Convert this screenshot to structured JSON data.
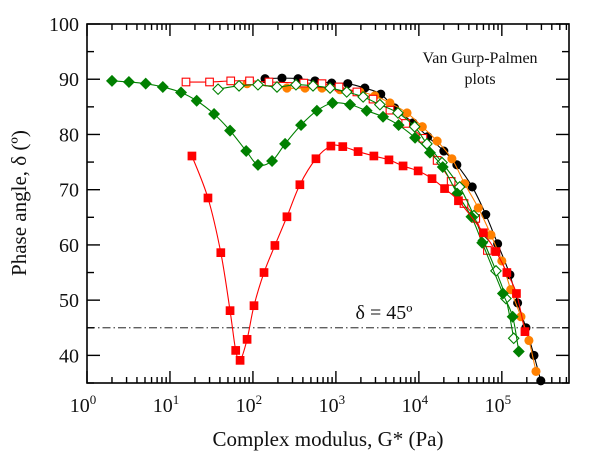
{
  "chart_data": {
    "type": "scatter",
    "title": "",
    "xlabel": "Complex modulus, G* (Pa)",
    "ylabel": "Phase angle, δ (º)",
    "x_scale": "log",
    "xlim": [
      1,
      645000
    ],
    "ylim": [
      35,
      100
    ],
    "x_ticks": [
      {
        "base": "10",
        "exp": "0",
        "value": 1
      },
      {
        "base": "10",
        "exp": "1",
        "value": 10
      },
      {
        "base": "10",
        "exp": "2",
        "value": 100
      },
      {
        "base": "10",
        "exp": "3",
        "value": 1000
      },
      {
        "base": "10",
        "exp": "4",
        "value": 10000
      },
      {
        "base": "10",
        "exp": "5",
        "value": 100000
      }
    ],
    "y_ticks": [
      "40",
      "50",
      "60",
      "70",
      "80",
      "90",
      "100"
    ],
    "grid": false,
    "annotation": [
      "Van Gurp-Palmen",
      "plots"
    ],
    "reference_line": {
      "y": 45,
      "label": "δ = 45º",
      "style": "dash-dot"
    },
    "series": [
      {
        "marker": "circle-filled",
        "color": "#000000",
        "x": [
          140,
          224,
          350,
          560,
          890,
          1390,
          2230,
          3470,
          5100,
          8500,
          12800,
          20000,
          28700,
          44000,
          64000,
          89000,
          125000,
          155000,
          195000,
          244000,
          295000
        ],
        "y": [
          90.1,
          90.2,
          90.1,
          89.7,
          89.3,
          89.2,
          88.4,
          87.3,
          84.8,
          82.1,
          79.6,
          77.0,
          74.5,
          70.5,
          65.5,
          60.2,
          54.6,
          49.5,
          45.0,
          40.0,
          35.4
        ]
      },
      {
        "marker": "circle-filled",
        "color": "#ff8000",
        "x": [
          85,
          257,
          425,
          680,
          1120,
          1950,
          2950,
          4480,
          7200,
          11000,
          16600,
          25000,
          35600,
          52000,
          74000,
          100000,
          128000,
          170000,
          212000,
          258000
        ],
        "y": [
          89.2,
          88.4,
          88.4,
          88.4,
          88.1,
          87.7,
          87.0,
          85.7,
          83.9,
          81.4,
          78.8,
          75.6,
          71.1,
          66.7,
          61.8,
          57.1,
          51.9,
          47.0,
          42.7,
          37.1
        ]
      },
      {
        "marker": "square-open",
        "color": "#ff0000",
        "x": [
          15.6,
          30,
          54,
          91,
          156,
          410,
          680,
          1090,
          1790,
          2800,
          4480,
          6940,
          11200,
          16600,
          24500,
          35000,
          48500,
          67000
        ],
        "y": [
          89.5,
          89.5,
          89.7,
          89.7,
          89.5,
          89.3,
          89.2,
          88.6,
          87.7,
          86.4,
          84.4,
          82.0,
          79.3,
          75.3,
          71.5,
          67.5,
          64.8,
          59.0
        ]
      },
      {
        "marker": "diamond-open",
        "color": "#008000",
        "x": [
          38,
          68,
          115,
          195,
          330,
          530,
          850,
          1350,
          2130,
          3390,
          5600,
          8900,
          12500,
          19000,
          31000,
          46000,
          60000,
          85000,
          112000,
          139000
        ],
        "y": [
          88.2,
          88.8,
          89.0,
          88.6,
          89.0,
          88.8,
          88.4,
          87.7,
          86.8,
          85.4,
          83.9,
          81.4,
          78.3,
          74.9,
          70.5,
          65.3,
          60.8,
          55.3,
          50.3,
          43.1
        ]
      },
      {
        "marker": "diamond-filled",
        "color": "#008000",
        "x": [
          2,
          3.2,
          5.1,
          8.2,
          13.6,
          21,
          34,
          53,
          83,
          115,
          170,
          244,
          380,
          590,
          910,
          1480,
          2350,
          3700,
          5700,
          9000,
          13600,
          19400,
          29000,
          43000,
          58000,
          103000,
          135000,
          160000
        ],
        "y": [
          89.7,
          89.5,
          89.2,
          88.6,
          87.6,
          86.1,
          83.7,
          80.7,
          77.0,
          74.5,
          75.2,
          78.3,
          81.7,
          84.3,
          85.7,
          85.4,
          84.3,
          83.2,
          81.7,
          79.4,
          76.7,
          74.1,
          69.3,
          65.1,
          60.4,
          51.2,
          47.0,
          40.7
        ]
      },
      {
        "marker": "square-filled",
        "color": "#ff0000",
        "x": [
          18.4,
          28.7,
          41,
          53,
          62,
          70,
          85,
          103,
          136,
          184,
          257,
          368,
          575,
          870,
          1210,
          1850,
          2870,
          4360,
          6450,
          9800,
          14400,
          20400,
          30000,
          60000,
          85000,
          115000,
          150000,
          190000
        ],
        "y": [
          76.1,
          68.5,
          58.6,
          48.1,
          40.9,
          39.1,
          42.9,
          49.0,
          55.0,
          59.9,
          65.1,
          70.9,
          75.6,
          77.9,
          77.8,
          76.9,
          76.1,
          75.4,
          74.3,
          73.4,
          72.0,
          70.2,
          68.0,
          62.2,
          58.8,
          55.0,
          51.2,
          44.3
        ]
      }
    ]
  }
}
